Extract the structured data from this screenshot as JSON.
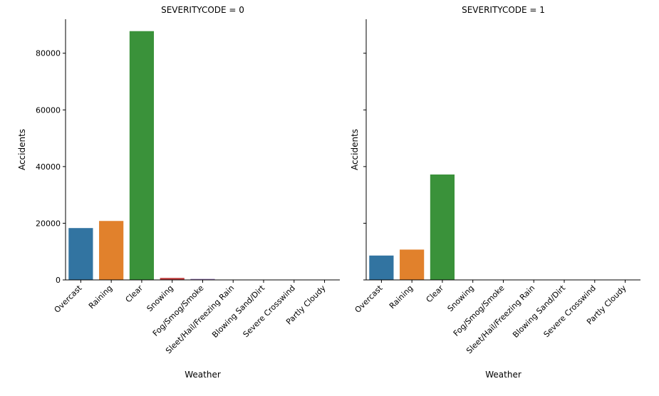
{
  "chart_data": [
    {
      "type": "bar",
      "title": "SEVERITYCODE = 0",
      "xlabel": "Weather",
      "ylabel": "Accidents",
      "ylim": [
        0,
        92000
      ],
      "yticks": [
        0,
        20000,
        40000,
        60000,
        80000
      ],
      "grid": false,
      "categories": [
        "Overcast",
        "Raining",
        "Clear",
        "Snowing",
        "Fog/Smog/Smoke",
        "Sleet/Hail/Freezing Rain",
        "Blowing Sand/Dirt",
        "Severe Crosswind",
        "Partly Cloudy"
      ],
      "values": [
        18300,
        20800,
        87800,
        700,
        350,
        80,
        40,
        20,
        5
      ]
    },
    {
      "type": "bar",
      "title": "SEVERITYCODE = 1",
      "xlabel": "Weather",
      "ylabel": "Accidents",
      "ylim": [
        0,
        92000
      ],
      "yticks": [
        0,
        20000,
        40000,
        60000,
        80000
      ],
      "grid": false,
      "categories": [
        "Overcast",
        "Raining",
        "Clear",
        "Snowing",
        "Fog/Smog/Smoke",
        "Sleet/Hail/Freezing Rain",
        "Blowing Sand/Dirt",
        "Severe Crosswind",
        "Partly Cloudy"
      ],
      "values": [
        8600,
        10700,
        37200,
        100,
        60,
        20,
        10,
        5,
        2
      ]
    }
  ],
  "colors": [
    "#3274a1",
    "#e1812c",
    "#3a923a",
    "#c03d3e",
    "#9372b2",
    "#845b53",
    "#d684bd",
    "#7f7f7f",
    "#a9aa35"
  ]
}
